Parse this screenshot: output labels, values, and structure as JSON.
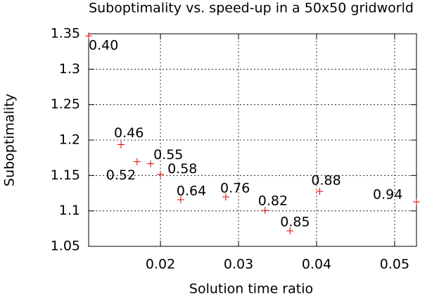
{
  "chart_data": {
    "type": "scatter",
    "title": "Suboptimality vs. speed-up in a 50x50 gridworld",
    "x_label": "Solution time ratio",
    "y_label": "Suboptimality",
    "series": [
      {
        "color": "#e00000",
        "x": [
          0.0108,
          0.01495,
          0.017,
          0.01874,
          0.02,
          0.0226,
          0.02838,
          0.0334,
          0.0366,
          0.0404,
          0.0528
        ],
        "values": [
          1.347,
          1.1935,
          1.1695,
          1.1666,
          1.1516,
          1.1157,
          1.1197,
          1.1007,
          1.0718,
          1.1277,
          1.1127
        ],
        "point_labels": [
          "0.40",
          "0.46",
          "0.52",
          "0.55",
          "0.58",
          "0.64",
          "0.76",
          "0.82",
          "0.85",
          "0.88",
          "0.94"
        ]
      }
    ],
    "xlim": [
      0.0108,
      0.0528
    ],
    "ylim": [
      1.05,
      1.35
    ],
    "xticks": [
      0.02,
      0.03,
      0.04,
      0.05
    ],
    "yticks": [
      1.05,
      1.1,
      1.15,
      1.2,
      1.25,
      1.3,
      1.35
    ],
    "grid": true
  }
}
